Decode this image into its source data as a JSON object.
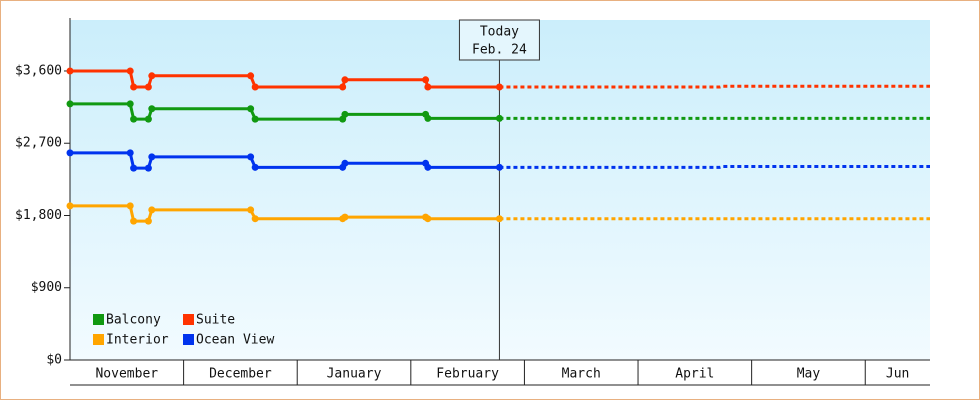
{
  "chart_data": {
    "type": "line",
    "annotation": {
      "x": 3.78,
      "lines": [
        "Today",
        "Feb. 24"
      ]
    },
    "categories": [
      "November",
      "December",
      "January",
      "February",
      "March",
      "April",
      "May",
      "Jun"
    ],
    "xlim": [
      0,
      7.57
    ],
    "ylim": [
      0,
      4235
    ],
    "yticks": [
      {
        "value": 0,
        "label": "$0"
      },
      {
        "value": 900,
        "label": "$900"
      },
      {
        "value": 1800,
        "label": "$1,800"
      },
      {
        "value": 2700,
        "label": "$2,700"
      },
      {
        "value": 3600,
        "label": "$3,600"
      }
    ],
    "x": [
      0,
      0.53,
      0.56,
      0.69,
      0.72,
      1.59,
      1.63,
      2.4,
      2.42,
      3.13,
      3.15,
      3.78
    ],
    "forecast_x": [
      3.78,
      5.72,
      5.75,
      7.57
    ],
    "series": [
      {
        "name": "Balcony",
        "color": "#119911",
        "values": [
          3190,
          3190,
          3000,
          3000,
          3130,
          3130,
          3000,
          3000,
          3060,
          3060,
          3010,
          3010
        ],
        "forecast": [
          3010,
          3010,
          3010,
          3010
        ]
      },
      {
        "name": "Suite",
        "color": "#ff3300",
        "values": [
          3600,
          3600,
          3400,
          3400,
          3540,
          3540,
          3400,
          3400,
          3490,
          3490,
          3400,
          3400
        ],
        "forecast": [
          3400,
          3400,
          3410,
          3410
        ]
      },
      {
        "name": "Interior",
        "color": "#ffa500",
        "values": [
          1920,
          1920,
          1730,
          1730,
          1870,
          1870,
          1760,
          1760,
          1780,
          1780,
          1760,
          1760
        ],
        "forecast": [
          1760,
          1760,
          1760,
          1760
        ]
      },
      {
        "name": "Ocean View",
        "color": "#0033ee",
        "values": [
          2580,
          2580,
          2390,
          2390,
          2530,
          2530,
          2400,
          2400,
          2450,
          2450,
          2400,
          2400
        ],
        "forecast": [
          2400,
          2400,
          2410,
          2410
        ]
      }
    ]
  }
}
